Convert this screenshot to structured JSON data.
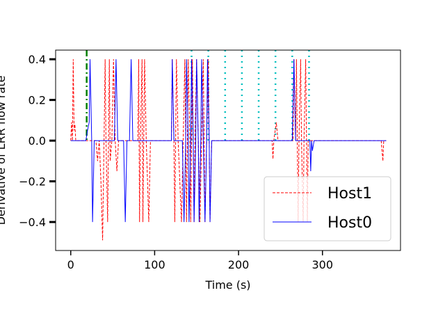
{
  "chart_data": {
    "type": "line",
    "xlabel": "Time (s)",
    "ylabel": "Derivative of LRR flow rate",
    "xlim": [
      -18,
      393
    ],
    "ylim": [
      -0.54,
      0.445
    ],
    "xticks": [
      0,
      100,
      200,
      300
    ],
    "yticks": [
      0.4,
      0.2,
      0.0,
      -0.2,
      -0.4
    ],
    "ytick_labels": [
      "0.4",
      "0.2",
      "0.0",
      "−0.2",
      "−0.4"
    ],
    "legend_position": "lower right",
    "series": [
      {
        "name": "Host1",
        "color": "#ff0000",
        "linestyle": "dashed",
        "points": [
          [
            0,
            0
          ],
          [
            1,
            0.09
          ],
          [
            2,
            0
          ],
          [
            3,
            0.4
          ],
          [
            4,
            0.05
          ],
          [
            5,
            0.08
          ],
          [
            6,
            0
          ],
          [
            30,
            0
          ],
          [
            32,
            -0.1
          ],
          [
            34,
            0
          ],
          [
            36,
            -0.2
          ],
          [
            38,
            -0.49
          ],
          [
            40,
            0.09
          ],
          [
            41,
            0.4
          ],
          [
            42,
            0
          ],
          [
            44,
            -0.4
          ],
          [
            45,
            0
          ],
          [
            46,
            0.4
          ],
          [
            47,
            -0.1
          ],
          [
            49,
            0
          ],
          [
            51,
            0.4
          ],
          [
            53,
            0
          ],
          [
            55,
            -0.15
          ],
          [
            57,
            0
          ],
          [
            80,
            0
          ],
          [
            81,
            0.4
          ],
          [
            82,
            -0.4
          ],
          [
            83,
            0
          ],
          [
            85,
            0.4
          ],
          [
            86,
            -0.4
          ],
          [
            88,
            0.4
          ],
          [
            90,
            0
          ],
          [
            93,
            -0.4
          ],
          [
            95,
            0
          ],
          [
            120,
            0
          ],
          [
            121,
            0.4
          ],
          [
            123,
            0
          ],
          [
            124,
            -0.4
          ],
          [
            126,
            0.4
          ],
          [
            128,
            0
          ],
          [
            132,
            -0.4
          ],
          [
            134,
            0
          ],
          [
            136,
            0.4
          ],
          [
            138,
            -0.4
          ],
          [
            140,
            0.4
          ],
          [
            142,
            0
          ],
          [
            143,
            -0.4
          ],
          [
            145,
            0.4
          ],
          [
            147,
            -0.4
          ],
          [
            148,
            0
          ],
          [
            150,
            0.4
          ],
          [
            152,
            0
          ],
          [
            154,
            -0.4
          ],
          [
            156,
            0
          ],
          [
            158,
            0.4
          ],
          [
            160,
            -0.4
          ],
          [
            162,
            0
          ],
          [
            164,
            0.4
          ],
          [
            166,
            -0.4
          ],
          [
            168,
            0
          ],
          [
            240,
            0
          ],
          [
            241,
            -0.09
          ],
          [
            242,
            0
          ],
          [
            245,
            0.09
          ],
          [
            247,
            0
          ],
          [
            265,
            0
          ],
          [
            266,
            0.4
          ],
          [
            268,
            0
          ],
          [
            269,
            0.4
          ],
          [
            270,
            0
          ],
          [
            271,
            -0.4
          ],
          [
            272,
            0
          ],
          [
            274,
            0.4
          ],
          [
            275,
            0
          ],
          [
            277,
            -0.4
          ],
          [
            278,
            0
          ],
          [
            280,
            0.4
          ],
          [
            282,
            -0.4
          ],
          [
            283,
            0
          ],
          [
            370,
            0
          ],
          [
            372,
            -0.1
          ],
          [
            373,
            0
          ],
          [
            376,
            0
          ]
        ]
      },
      {
        "name": "Host0",
        "color": "#0000ff",
        "linestyle": "solid",
        "points": [
          [
            0,
            0
          ],
          [
            18,
            0
          ],
          [
            20,
            0.05
          ],
          [
            22,
            0.09
          ],
          [
            23,
            0.4
          ],
          [
            25,
            0
          ],
          [
            26,
            -0.4
          ],
          [
            28,
            0
          ],
          [
            52,
            0
          ],
          [
            54,
            0.4
          ],
          [
            56,
            0
          ],
          [
            63,
            0
          ],
          [
            65,
            -0.4
          ],
          [
            67,
            0
          ],
          [
            70,
            0
          ],
          [
            72,
            0.4
          ],
          [
            74,
            0
          ],
          [
            120,
            0
          ],
          [
            121,
            0.4
          ],
          [
            123,
            0
          ],
          [
            133,
            0
          ],
          [
            135,
            -0.4
          ],
          [
            137,
            0
          ],
          [
            138,
            0.4
          ],
          [
            140,
            0
          ],
          [
            141,
            -0.4
          ],
          [
            143,
            0
          ],
          [
            144,
            0.4
          ],
          [
            146,
            0
          ],
          [
            147,
            -0.4
          ],
          [
            149,
            0
          ],
          [
            150,
            0.4
          ],
          [
            152,
            0
          ],
          [
            153,
            -0.4
          ],
          [
            155,
            0
          ],
          [
            156,
            0.4
          ],
          [
            158,
            0
          ],
          [
            160,
            -0.4
          ],
          [
            162,
            0
          ],
          [
            163,
            0.4
          ],
          [
            165,
            0
          ],
          [
            166,
            -0.4
          ],
          [
            168,
            0
          ],
          [
            264,
            0
          ],
          [
            266,
            0.4
          ],
          [
            268,
            0
          ],
          [
            285,
            0
          ],
          [
            286,
            -0.15
          ],
          [
            287,
            0
          ],
          [
            288,
            -0.05
          ],
          [
            290,
            0
          ],
          [
            376,
            0
          ]
        ]
      }
    ],
    "vlines": [
      {
        "x": 19,
        "color": "#008000",
        "linestyle": "dashdot"
      },
      {
        "x": 144,
        "color": "#00bfbf",
        "linestyle": "dotted"
      },
      {
        "x": 164,
        "color": "#00bfbf",
        "linestyle": "dotted"
      },
      {
        "x": 184,
        "color": "#00bfbf",
        "linestyle": "dotted"
      },
      {
        "x": 204,
        "color": "#00bfbf",
        "linestyle": "dotted"
      },
      {
        "x": 224,
        "color": "#00bfbf",
        "linestyle": "dotted"
      },
      {
        "x": 244,
        "color": "#00bfbf",
        "linestyle": "dotted"
      },
      {
        "x": 264,
        "color": "#00bfbf",
        "linestyle": "dotted"
      },
      {
        "x": 284,
        "color": "#00bfbf",
        "linestyle": "dotted"
      }
    ]
  }
}
